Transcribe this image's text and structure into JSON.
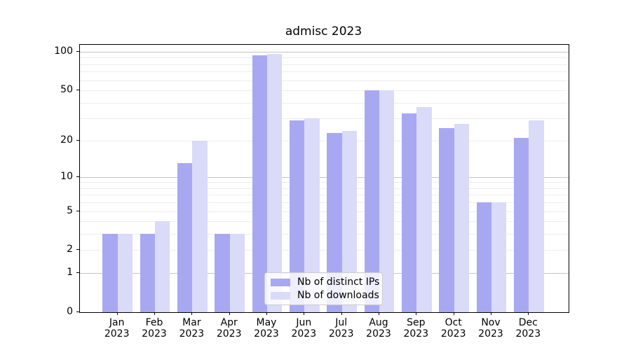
{
  "title": "admisc 2023",
  "chart_data": {
    "type": "bar",
    "title": "admisc 2023",
    "x_year": "2023",
    "months": [
      "Jan",
      "Feb",
      "Mar",
      "Apr",
      "May",
      "Jun",
      "Jul",
      "Aug",
      "Sep",
      "Oct",
      "Nov",
      "Dec"
    ],
    "categories": [
      "Jan 2023",
      "Feb 2023",
      "Mar 2023",
      "Apr 2023",
      "May 2023",
      "Jun 2023",
      "Jul 2023",
      "Aug 2023",
      "Sep 2023",
      "Oct 2023",
      "Nov 2023",
      "Dec 2023"
    ],
    "series": [
      {
        "name": "Nb of distinct IPs",
        "key": "distinct-ips",
        "color": "#a8a8f2",
        "values": [
          3,
          3,
          13,
          3,
          94,
          29,
          23,
          50,
          33,
          25,
          6,
          21
        ]
      },
      {
        "name": "Nb of downloads",
        "key": "downloads",
        "color": "#dadaf9",
        "values": [
          3,
          4,
          20,
          3,
          96,
          30,
          24,
          50,
          37,
          27,
          6,
          29
        ]
      }
    ],
    "y_scale": "log10(value+1)",
    "y_tick_labels": [
      0,
      1,
      2,
      5,
      10,
      20,
      50,
      100
    ],
    "minor_gridlines": [
      2,
      3,
      4,
      5,
      6,
      7,
      8,
      9,
      20,
      30,
      40,
      50,
      60,
      70,
      80,
      90
    ],
    "major_gridlines": [
      1,
      10,
      100
    ],
    "ylim": [
      0,
      113
    ],
    "grid": true,
    "legend_position": "lower center",
    "xlabel": "",
    "ylabel": ""
  },
  "colors": {
    "grid_minor": "#ededed",
    "grid_major": "#c4c4c4",
    "axis": "#000000",
    "legend_border": "#cccccc",
    "background": "#ffffff"
  }
}
